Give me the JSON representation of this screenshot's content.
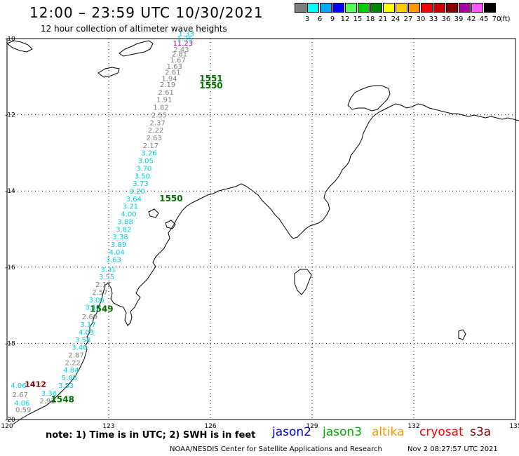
{
  "header": {
    "title": "12:00 – 23:59 UTC 10/30/2021",
    "subtitle": "12 hour collection of altimeter wave heights"
  },
  "legend": {
    "unit": "(ft)",
    "bins": [
      {
        "label": "3",
        "color": "#7f7f7f"
      },
      {
        "label": "6",
        "color": "#00ffff"
      },
      {
        "label": "9",
        "color": "#00aaff"
      },
      {
        "label": "12",
        "color": "#0000ff"
      },
      {
        "label": "15",
        "color": "#55ff55"
      },
      {
        "label": "18",
        "color": "#00cc00"
      },
      {
        "label": "21",
        "color": "#008800"
      },
      {
        "label": "24",
        "color": "#ffff00"
      },
      {
        "label": "27",
        "color": "#ffcc00"
      },
      {
        "label": "30",
        "color": "#ff9900"
      },
      {
        "label": "33",
        "color": "#ff0000"
      },
      {
        "label": "36",
        "color": "#cc0000"
      },
      {
        "label": "39",
        "color": "#880000"
      },
      {
        "label": "42",
        "color": "#aa00aa"
      },
      {
        "label": "45",
        "color": "#ff55ff"
      },
      {
        "label": "70",
        "color": "#000000"
      }
    ]
  },
  "axes": {
    "lon_ticks": [
      "120",
      "123",
      "126",
      "129",
      "132",
      "135"
    ],
    "lat_ticks": [
      "-10",
      "-12",
      "-14",
      "-16",
      "-18",
      "-20"
    ]
  },
  "colors": {
    "low": "#808080",
    "cyan": "#00d0e0",
    "time": "#007000",
    "magenta": "#a000a0",
    "darkred": "#800000"
  },
  "track": [
    {
      "v": "0.59",
      "lon": 120.48,
      "lat": -19.81,
      "c": "low"
    },
    {
      "v": "4.06",
      "lon": 120.44,
      "lat": -19.63,
      "c": "cyan"
    },
    {
      "v": "2.92",
      "lon": 121.19,
      "lat": -19.58,
      "c": "low"
    },
    {
      "v": "3.36",
      "lon": 121.24,
      "lat": -19.37,
      "c": "cyan"
    },
    {
      "v": "2.67",
      "lon": 120.39,
      "lat": -19.41,
      "c": "low"
    },
    {
      "v": "4.06",
      "lon": 120.34,
      "lat": -19.17,
      "c": "cyan"
    },
    {
      "v": "3.53",
      "lon": 121.74,
      "lat": -19.17,
      "c": "cyan"
    },
    {
      "v": "5.05",
      "lon": 121.84,
      "lat": -18.97,
      "c": "cyan"
    },
    {
      "v": "4.84",
      "lon": 121.89,
      "lat": -18.77,
      "c": "cyan"
    },
    {
      "v": "2.22",
      "lon": 121.94,
      "lat": -18.57,
      "c": "low"
    },
    {
      "v": "2.87",
      "lon": 122.04,
      "lat": -18.37,
      "c": "low"
    },
    {
      "v": "3.40",
      "lon": 122.14,
      "lat": -18.17,
      "c": "cyan"
    },
    {
      "v": "3.58",
      "lon": 122.24,
      "lat": -17.97,
      "c": "cyan"
    },
    {
      "v": "4.03",
      "lon": 122.34,
      "lat": -17.77,
      "c": "cyan"
    },
    {
      "v": "3.17",
      "lon": 122.39,
      "lat": -17.57,
      "c": "cyan"
    },
    {
      "v": "2.69",
      "lon": 122.44,
      "lat": -17.37,
      "c": "low"
    },
    {
      "v": "3.12",
      "lon": 122.54,
      "lat": -17.12,
      "c": "cyan"
    },
    {
      "v": "3.06",
      "lon": 122.64,
      "lat": -16.92,
      "c": "cyan"
    },
    {
      "v": "2.57",
      "lon": 122.74,
      "lat": -16.72,
      "c": "low"
    },
    {
      "v": "2.17",
      "lon": 122.84,
      "lat": -16.52,
      "c": "low"
    },
    {
      "v": "3.55",
      "lon": 122.94,
      "lat": -16.32,
      "c": "cyan"
    },
    {
      "v": "3.31",
      "lon": 122.99,
      "lat": -16.12,
      "c": "cyan"
    },
    {
      "v": "3.63",
      "lon": 123.14,
      "lat": -15.87,
      "c": "cyan"
    },
    {
      "v": "4.04",
      "lon": 123.24,
      "lat": -15.67,
      "c": "cyan"
    },
    {
      "v": "3.89",
      "lon": 123.29,
      "lat": -15.47,
      "c": "cyan"
    },
    {
      "v": "3.38",
      "lon": 123.34,
      "lat": -15.27,
      "c": "cyan"
    },
    {
      "v": "3.82",
      "lon": 123.44,
      "lat": -15.07,
      "c": "cyan"
    },
    {
      "v": "3.88",
      "lon": 123.49,
      "lat": -14.87,
      "c": "cyan"
    },
    {
      "v": "4.00",
      "lon": 123.59,
      "lat": -14.67,
      "c": "cyan"
    },
    {
      "v": "3.21",
      "lon": 123.64,
      "lat": -14.47,
      "c": "cyan"
    },
    {
      "v": "3.64",
      "lon": 123.74,
      "lat": -14.27,
      "c": "cyan"
    },
    {
      "v": "3.20",
      "lon": 123.84,
      "lat": -14.07,
      "c": "cyan"
    },
    {
      "v": "3.73",
      "lon": 123.94,
      "lat": -13.87,
      "c": "cyan"
    },
    {
      "v": "3.50",
      "lon": 123.99,
      "lat": -13.67,
      "c": "cyan"
    },
    {
      "v": "3.70",
      "lon": 124.04,
      "lat": -13.47,
      "c": "cyan"
    },
    {
      "v": "3.05",
      "lon": 124.09,
      "lat": -13.27,
      "c": "cyan"
    },
    {
      "v": "3.26",
      "lon": 124.19,
      "lat": -13.07,
      "c": "cyan"
    },
    {
      "v": "2.17",
      "lon": 124.24,
      "lat": -12.87,
      "c": "low"
    },
    {
      "v": "2.63",
      "lon": 124.34,
      "lat": -12.67,
      "c": "low"
    },
    {
      "v": "2.22",
      "lon": 124.39,
      "lat": -12.47,
      "c": "low"
    },
    {
      "v": "2.37",
      "lon": 124.44,
      "lat": -12.27,
      "c": "low"
    },
    {
      "v": "2.55",
      "lon": 124.49,
      "lat": -12.07,
      "c": "low"
    },
    {
      "v": "1.82",
      "lon": 124.54,
      "lat": -11.87,
      "c": "low"
    },
    {
      "v": "1.91",
      "lon": 124.64,
      "lat": -11.67,
      "c": "low"
    },
    {
      "v": "2.61",
      "lon": 124.69,
      "lat": -11.47,
      "c": "low"
    },
    {
      "v": "2.19",
      "lon": 124.74,
      "lat": -11.27,
      "c": "low"
    },
    {
      "v": "1.94",
      "lon": 124.79,
      "lat": -11.11,
      "c": "low"
    },
    {
      "v": "2.61",
      "lon": 124.89,
      "lat": -10.95,
      "c": "low"
    },
    {
      "v": "1.63",
      "lon": 124.94,
      "lat": -10.79,
      "c": "low"
    },
    {
      "v": "1.67",
      "lon": 125.04,
      "lat": -10.63,
      "c": "low"
    },
    {
      "v": "2.81",
      "lon": 125.09,
      "lat": -10.47,
      "c": "low"
    },
    {
      "v": "2.43",
      "lon": 125.14,
      "lat": -10.35,
      "c": "low"
    },
    {
      "v": "11.23",
      "lon": 125.19,
      "lat": -10.18,
      "c": "magenta"
    },
    {
      "v": "1.35",
      "lon": 125.24,
      "lat": -10.06,
      "c": "cyan"
    },
    {
      "v": "1.33",
      "lon": 125.29,
      "lat": -9.94,
      "c": "cyan"
    }
  ],
  "time_labels": [
    {
      "text": "1551",
      "lon": 126.02,
      "lat": -11.12
    },
    {
      "text": "1550",
      "lon": 126.02,
      "lat": -11.31
    },
    {
      "text": "1550",
      "lon": 124.84,
      "lat": -14.27
    },
    {
      "text": "1549",
      "lon": 122.79,
      "lat": -17.17
    },
    {
      "text": "1548",
      "lon": 121.64,
      "lat": -19.55
    }
  ],
  "special_labels": [
    {
      "text": "1412",
      "lon": 120.84,
      "lat": -19.14,
      "c": "darkred"
    }
  ],
  "note": "note: 1) Time is in UTC; 2) SWH is in feet",
  "satellites": [
    {
      "name": "jason2",
      "color": "#0000cc"
    },
    {
      "name": "jason3",
      "color": "#00aa00"
    },
    {
      "name": "altika",
      "color": "#ff9900"
    },
    {
      "name": "cryosat",
      "color": "#ff0000"
    },
    {
      "name": "s3a",
      "color": "#880000"
    }
  ],
  "footer": {
    "credit": "NOAA/NESDIS Center for Satellite Applications and Research",
    "generated": "Nov  2 08:27:57 UTC 2021"
  }
}
